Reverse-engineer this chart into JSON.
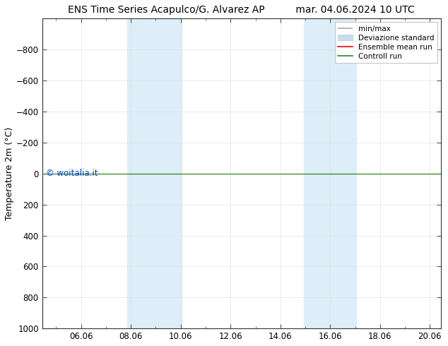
{
  "title_left": "ENS Time Series Acapulco/G. Alvarez AP",
  "title_right": "mar. 04.06.2024 10 UTC",
  "ylabel": "Temperature 2m (°C)",
  "xlim": [
    4.5,
    20.5
  ],
  "ylim": [
    1000,
    -1000
  ],
  "yticks": [
    -800,
    -600,
    -400,
    -200,
    0,
    200,
    400,
    600,
    800,
    1000
  ],
  "xticks": [
    6.06,
    8.06,
    10.06,
    12.06,
    14.06,
    16.06,
    18.06,
    20.06
  ],
  "xtick_labels": [
    "06.06",
    "08.06",
    "10.06",
    "12.06",
    "14.06",
    "16.06",
    "18.06",
    "20.06"
  ],
  "background_color": "#ffffff",
  "plot_bg_color": "#ffffff",
  "shaded_regions": [
    {
      "xmin": 7.9,
      "xmax": 9.1,
      "color": "#ddeef8"
    },
    {
      "xmin": 9.1,
      "xmax": 10.1,
      "color": "#ddeef8"
    },
    {
      "xmin": 15.0,
      "xmax": 16.1,
      "color": "#ddeef8"
    },
    {
      "xmin": 16.1,
      "xmax": 17.1,
      "color": "#ddeef8"
    }
  ],
  "control_run_y": 0.0,
  "control_run_color": "#228B22",
  "ensemble_mean_color": "#ff0000",
  "minmax_color": "#aaaaaa",
  "std_color": "#c8dcee",
  "watermark": "© woitalia.it",
  "watermark_color": "#0044cc",
  "legend_labels": [
    "min/max",
    "Deviazione standard",
    "Ensemble mean run",
    "Controll run"
  ],
  "legend_colors": [
    "#aaaaaa",
    "#c8dcee",
    "#ff0000",
    "#228B22"
  ],
  "title_fontsize": 10,
  "ylabel_fontsize": 9,
  "tick_fontsize": 8.5
}
